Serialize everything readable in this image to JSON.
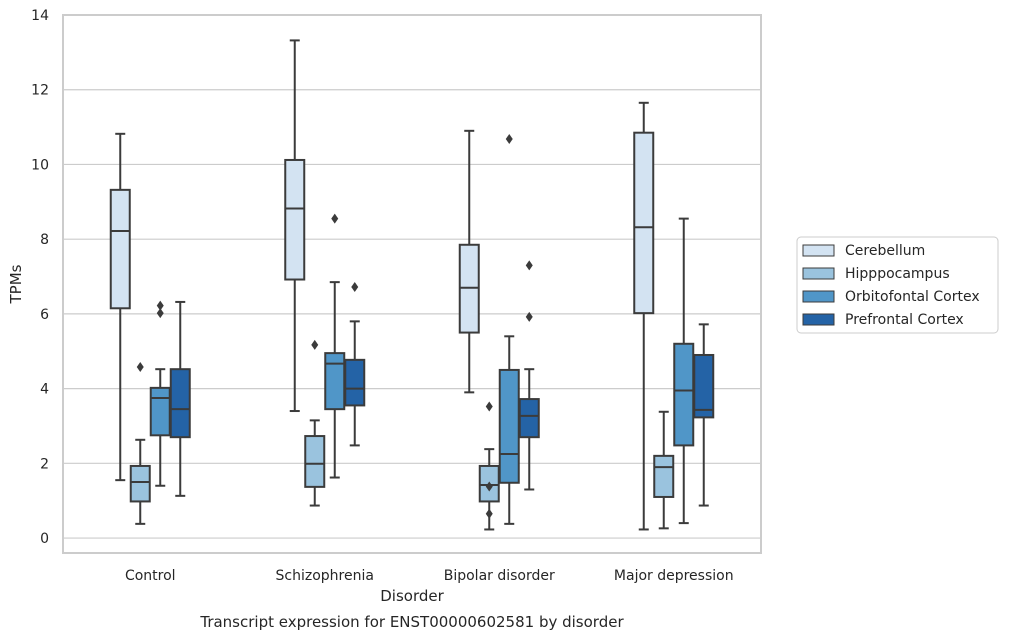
{
  "chart_data": {
    "type": "box",
    "caption": "Transcript expression for ENST00000602581 by disorder",
    "xlabel": "Disorder",
    "ylabel": "TPMs",
    "ylim": [
      -0.4,
      14
    ],
    "yticks": [
      0,
      2,
      4,
      6,
      8,
      10,
      12,
      14
    ],
    "grid": "horizontal",
    "legend_position": "right",
    "categories": [
      "Control",
      "Schizophrenia",
      "Bipolar disorder",
      "Major depression"
    ],
    "series": [
      {
        "name": "Cerebellum",
        "color": "#d3e3f2",
        "boxes": [
          {
            "whislo": 1.55,
            "q1": 6.15,
            "med": 8.22,
            "q3": 9.32,
            "whishi": 10.82,
            "fliers": []
          },
          {
            "whislo": 3.4,
            "q1": 6.92,
            "med": 8.82,
            "q3": 10.12,
            "whishi": 13.32,
            "fliers": []
          },
          {
            "whislo": 3.9,
            "q1": 5.5,
            "med": 6.7,
            "q3": 7.85,
            "whishi": 10.9,
            "fliers": []
          },
          {
            "whislo": 0.23,
            "q1": 6.02,
            "med": 8.32,
            "q3": 10.85,
            "whishi": 11.65,
            "fliers": []
          }
        ]
      },
      {
        "name": "Hipppocampus",
        "color": "#9ac3de",
        "boxes": [
          {
            "whislo": 0.38,
            "q1": 0.98,
            "med": 1.5,
            "q3": 1.93,
            "whishi": 2.63,
            "fliers": [
              4.58
            ]
          },
          {
            "whislo": 0.87,
            "q1": 1.37,
            "med": 1.99,
            "q3": 2.73,
            "whishi": 3.15,
            "fliers": [
              5.17
            ]
          },
          {
            "whislo": 0.23,
            "q1": 0.98,
            "med": 1.42,
            "q3": 1.93,
            "whishi": 2.38,
            "fliers": [
              0.65,
              1.38,
              3.52
            ]
          },
          {
            "whislo": 0.26,
            "q1": 1.1,
            "med": 1.9,
            "q3": 2.2,
            "whishi": 3.38,
            "fliers": []
          }
        ]
      },
      {
        "name": "Orbitofontal Cortex",
        "color": "#5096c8",
        "boxes": [
          {
            "whislo": 1.4,
            "q1": 2.75,
            "med": 3.75,
            "q3": 4.02,
            "whishi": 4.52,
            "fliers": [
              6.02,
              6.22
            ]
          },
          {
            "whislo": 1.62,
            "q1": 3.45,
            "med": 4.67,
            "q3": 4.95,
            "whishi": 6.85,
            "fliers": [
              8.55
            ]
          },
          {
            "whislo": 0.38,
            "q1": 1.48,
            "med": 2.25,
            "q3": 4.5,
            "whishi": 5.4,
            "fliers": [
              10.68
            ]
          },
          {
            "whislo": 0.4,
            "q1": 2.48,
            "med": 3.95,
            "q3": 5.2,
            "whishi": 8.55,
            "fliers": []
          }
        ]
      },
      {
        "name": "Prefrontal Cortex",
        "color": "#2463a6",
        "boxes": [
          {
            "whislo": 1.13,
            "q1": 2.7,
            "med": 3.45,
            "q3": 4.52,
            "whishi": 6.32,
            "fliers": []
          },
          {
            "whislo": 2.48,
            "q1": 3.55,
            "med": 4.0,
            "q3": 4.77,
            "whishi": 5.8,
            "fliers": [
              6.72
            ]
          },
          {
            "whislo": 1.3,
            "q1": 2.7,
            "med": 3.27,
            "q3": 3.72,
            "whishi": 4.52,
            "fliers": [
              5.92,
              7.3
            ]
          },
          {
            "whislo": 0.87,
            "q1": 3.23,
            "med": 3.43,
            "q3": 4.9,
            "whishi": 5.72,
            "fliers": []
          }
        ]
      }
    ]
  }
}
